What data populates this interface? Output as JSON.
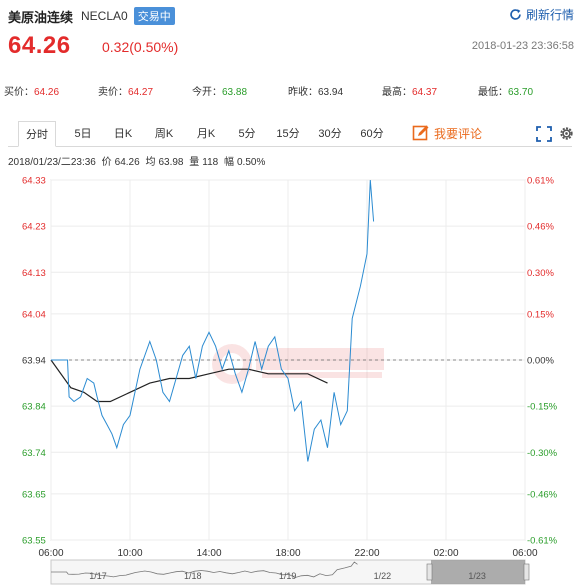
{
  "header": {
    "name": "美原油连续",
    "code": "NECLA0",
    "status": "交易中",
    "refresh_label": "刷新行情"
  },
  "price": {
    "last": "64.26",
    "change": "0.32(0.50%)",
    "timestamp": "2018-01-23 23:36:58"
  },
  "quote": {
    "bid_label": "买价：",
    "bid": "64.26",
    "ask_label": "卖价：",
    "ask": "64.27",
    "open_label": "今开：",
    "open": "63.88",
    "prev_label": "昨收：",
    "prev": "63.94",
    "high_label": "最高：",
    "high": "64.37",
    "low_label": "最低：",
    "low": "63.70"
  },
  "tabs": [
    "分时",
    "5日",
    "日K",
    "周K",
    "月K",
    "5分",
    "15分",
    "30分",
    "60分"
  ],
  "active_tab": 0,
  "comment_label": "我要评论",
  "info": {
    "datetime": "2018/01/23/二23:36",
    "price_label": "价",
    "price": "64.26",
    "avg_label": "均",
    "avg": "63.98",
    "vol_label": "量",
    "vol": "118",
    "range_label": "幅",
    "range": "0.50%"
  },
  "colors": {
    "up": "#e32b2b",
    "down": "#2a9d2a",
    "line": "#2b8bd1",
    "avg": "#222222",
    "accent": "#1f5fae"
  },
  "chart_data": {
    "type": "line",
    "title": "",
    "ylabel": "",
    "xlabel": "",
    "prev_close": 63.94,
    "ylim": [
      63.55,
      64.33
    ],
    "ytick_values": [
      64.33,
      64.23,
      64.13,
      64.04,
      63.94,
      63.84,
      63.74,
      63.65,
      63.55
    ],
    "ytick_labels": [
      "64.33",
      "64.23",
      "64.13",
      "64.04",
      "63.94",
      "63.84",
      "63.74",
      "63.65",
      "63.55"
    ],
    "pct_labels": [
      "0.61%",
      "0.46%",
      "0.30%",
      "0.15%",
      "0.00%",
      "-0.15%",
      "-0.30%",
      "-0.46%",
      "-0.61%"
    ],
    "x_start": "06:00",
    "x_end": "06:00 (+1)",
    "x_ticks": [
      "06:00",
      "10:00",
      "14:00",
      "18:00",
      "22:00",
      "02:00",
      "06:00"
    ],
    "nav_dates": [
      "1/17",
      "1/18",
      "1/19",
      "1/22",
      "1/23"
    ],
    "series": [
      {
        "name": "price",
        "x": [
          "06:00",
          "06:50",
          "06:55",
          "07:10",
          "07:30",
          "07:50",
          "08:10",
          "08:20",
          "08:35",
          "08:50",
          "09:05",
          "09:20",
          "09:40",
          "10:00",
          "10:30",
          "11:00",
          "11:20",
          "11:40",
          "12:00",
          "12:20",
          "12:40",
          "13:00",
          "13:20",
          "13:40",
          "14:00",
          "14:20",
          "14:40",
          "15:00",
          "15:20",
          "15:40",
          "16:00",
          "16:20",
          "16:40",
          "17:00",
          "17:20",
          "17:40",
          "18:00",
          "18:20",
          "18:40",
          "19:00",
          "19:20",
          "19:40",
          "20:00",
          "20:20",
          "20:40",
          "21:00",
          "21:15",
          "21:40",
          "22:00",
          "22:10",
          "22:20"
        ],
        "values": [
          63.94,
          63.94,
          63.86,
          63.85,
          63.86,
          63.9,
          63.89,
          63.86,
          63.82,
          63.8,
          63.78,
          63.75,
          63.8,
          63.82,
          63.92,
          63.98,
          63.94,
          63.87,
          63.85,
          63.9,
          63.95,
          63.97,
          63.9,
          63.97,
          64.0,
          63.97,
          63.92,
          63.96,
          63.91,
          63.87,
          63.92,
          63.98,
          63.92,
          63.97,
          63.99,
          63.92,
          63.9,
          63.83,
          63.85,
          63.72,
          63.79,
          63.81,
          63.75,
          63.87,
          63.8,
          63.83,
          64.03,
          64.1,
          64.17,
          64.33,
          64.24
        ]
      },
      {
        "name": "average",
        "x": [
          "06:00",
          "07:00",
          "07:40",
          "08:20",
          "09:00",
          "10:00",
          "11:00",
          "12:00",
          "13:00",
          "14:00",
          "15:00",
          "16:00",
          "17:00",
          "18:00",
          "19:00",
          "20:00"
        ],
        "values": [
          63.94,
          63.88,
          63.87,
          63.85,
          63.85,
          63.87,
          63.89,
          63.9,
          63.9,
          63.91,
          63.92,
          63.92,
          63.91,
          63.91,
          63.91,
          63.89
        ]
      }
    ]
  }
}
